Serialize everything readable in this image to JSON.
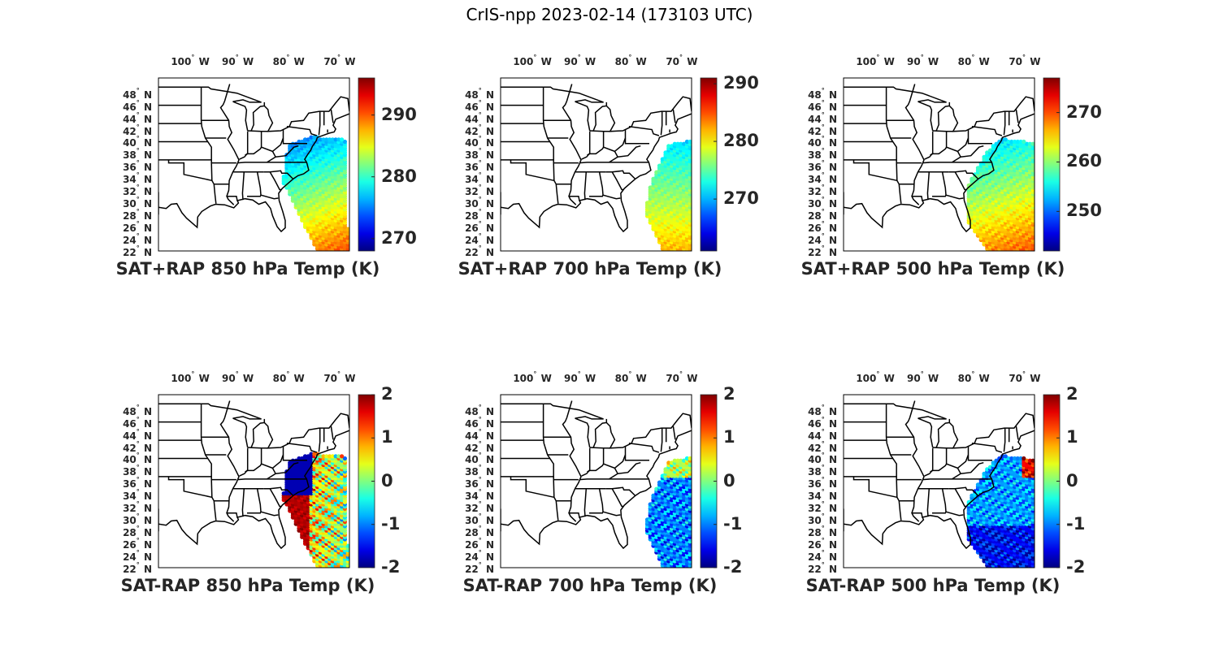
{
  "title": "CrIS-npp 2023-02-14 (173103 UTC)",
  "lon_ticks": [
    "100",
    "90",
    "80",
    "70"
  ],
  "lon_hemi": "W",
  "lat_ticks": [
    "48",
    "46",
    "44",
    "42",
    "40",
    "38",
    "36",
    "34",
    "32",
    "30",
    "28",
    "26",
    "24",
    "22"
  ],
  "lat_hemi": "N",
  "degree_symbol": "°",
  "colors": {
    "outline": "#000000",
    "text": "#262626"
  },
  "panels": [
    {
      "id": "p1",
      "title": "SAT+RAP 850 hPa Temp (K)",
      "cbar_ticks": [
        "290",
        "280",
        "270"
      ],
      "cbar_range": [
        268,
        296
      ],
      "cbar_tick_values": [
        290,
        280,
        270
      ],
      "swath": "ne-wide",
      "field": "temp850"
    },
    {
      "id": "p2",
      "title": "SAT+RAP 700 hPa Temp (K)",
      "cbar_ticks": [
        "290",
        "280",
        "270"
      ],
      "cbar_range": [
        261,
        291
      ],
      "cbar_tick_values": [
        290,
        280,
        270
      ],
      "swath": "se-narrow",
      "field": "temp700"
    },
    {
      "id": "p3",
      "title": "SAT+RAP 500 hPa Temp (K)",
      "cbar_ticks": [
        "270",
        "260",
        "250"
      ],
      "cbar_range": [
        242,
        277
      ],
      "cbar_tick_values": [
        270,
        260,
        250
      ],
      "swath": "se-wide",
      "field": "temp500"
    },
    {
      "id": "p4",
      "title": "SAT-RAP 850 hPa Temp (K)",
      "cbar_ticks": [
        "2",
        "1",
        "0",
        "-1",
        "-2"
      ],
      "cbar_range": [
        -2,
        2
      ],
      "cbar_tick_values": [
        2,
        1,
        0,
        -1,
        -2
      ],
      "swath": "ne-wide",
      "field": "diff850"
    },
    {
      "id": "p5",
      "title": "SAT-RAP 700 hPa Temp (K)",
      "cbar_ticks": [
        "2",
        "1",
        "0",
        "-1",
        "-2"
      ],
      "cbar_range": [
        -2,
        2
      ],
      "cbar_tick_values": [
        2,
        1,
        0,
        -1,
        -2
      ],
      "swath": "se-narrow",
      "field": "diff700"
    },
    {
      "id": "p6",
      "title": "SAT-RAP 500 hPa Temp (K)",
      "cbar_ticks": [
        "2",
        "1",
        "0",
        "-1",
        "-2"
      ],
      "cbar_range": [
        -2,
        2
      ],
      "cbar_tick_values": [
        2,
        1,
        0,
        -1,
        -2
      ],
      "swath": "se-wide",
      "field": "diff500"
    }
  ]
}
